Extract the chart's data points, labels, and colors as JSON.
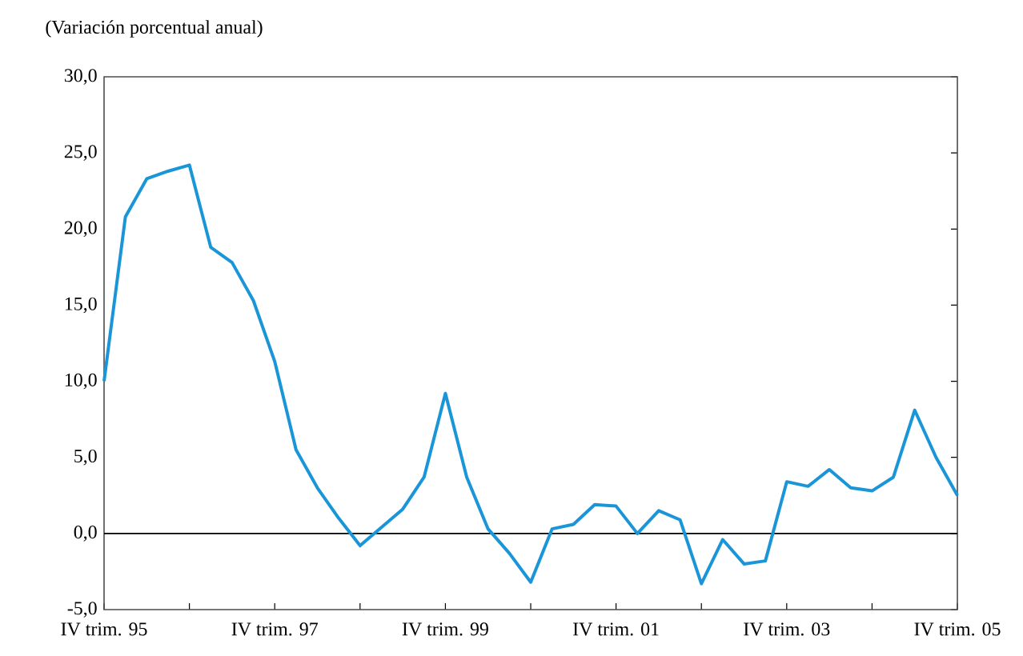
{
  "chart_data": {
    "type": "line",
    "title": "(Variación porcentual anual)",
    "categories": [
      "IV trim. 95",
      null,
      null,
      null,
      null,
      null,
      null,
      null,
      "IV trim. 97",
      null,
      null,
      null,
      null,
      null,
      null,
      null,
      "IV trim. 99",
      null,
      null,
      null,
      null,
      null,
      null,
      null,
      "IV trim. 01",
      null,
      null,
      null,
      null,
      null,
      null,
      null,
      "IV trim. 03",
      null,
      null,
      null,
      null,
      null,
      null,
      null,
      "IV trim. 05"
    ],
    "series": [
      {
        "color": "#1a96d8",
        "values": [
          10.0,
          20.8,
          23.3,
          23.8,
          24.2,
          18.8,
          17.8,
          15.3,
          11.3,
          5.5,
          3.0,
          1.0,
          -0.8,
          0.4,
          1.6,
          3.7,
          9.2,
          3.7,
          0.3,
          -1.3,
          -3.2,
          0.3,
          0.6,
          1.9,
          1.8,
          0.0,
          1.5,
          0.9,
          -3.3,
          -0.4,
          -2.0,
          -1.8,
          3.4,
          3.1,
          4.2,
          3.0,
          2.8,
          3.7,
          8.1,
          5.0,
          2.5
        ]
      }
    ],
    "ylim": [
      -5,
      30
    ],
    "yticks": [
      {
        "value": -5,
        "label": "-5,0"
      },
      {
        "value": 0,
        "label": "0,0"
      },
      {
        "value": 5,
        "label": "5,0"
      },
      {
        "value": 10,
        "label": "10,0"
      },
      {
        "value": 15,
        "label": "15,0"
      },
      {
        "value": 20,
        "label": "20,0"
      },
      {
        "value": 25,
        "label": "25,0"
      },
      {
        "value": 30,
        "label": "30,0"
      }
    ],
    "ref_lines": [
      {
        "axis": "y",
        "value": 0,
        "color": "#000000"
      }
    ],
    "marker": "none",
    "line_style": "solid"
  }
}
